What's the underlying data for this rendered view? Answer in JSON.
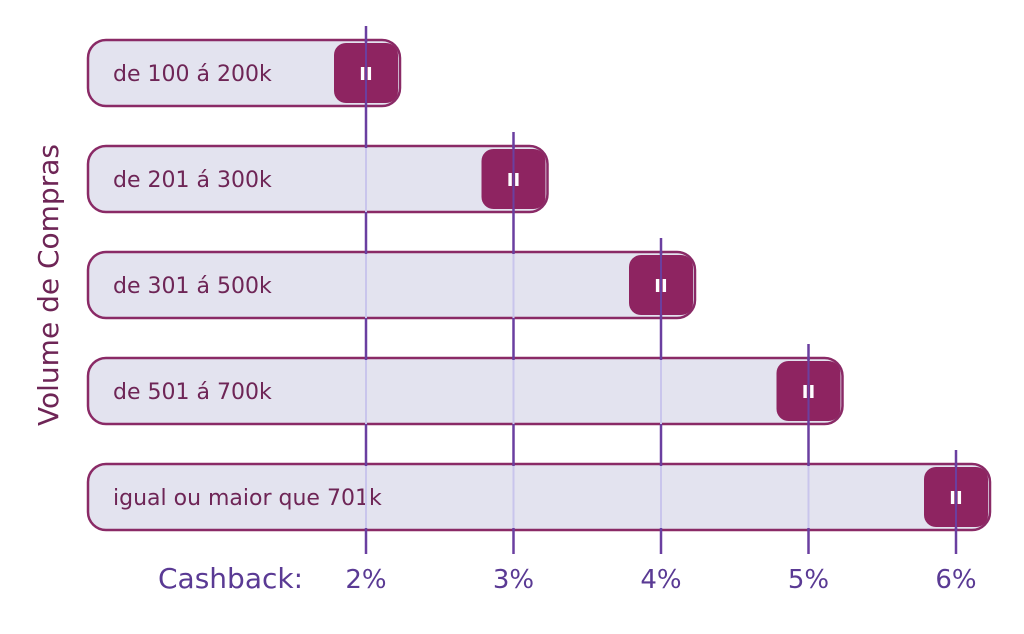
{
  "chart_data": {
    "type": "bar",
    "orientation": "horizontal",
    "ylabel": "Volume de Compras",
    "xlabel": "Cashback:",
    "categories": [
      "de 100 á 200k",
      "de 201 á 300k",
      "de 301 á 500k",
      "de 501 á 700k",
      "igual ou maior que 701k"
    ],
    "values": [
      2,
      3,
      4,
      5,
      6
    ],
    "x_ticks": [
      "2%",
      "3%",
      "4%",
      "5%",
      "6%"
    ],
    "x_tick_values": [
      2,
      3,
      4,
      5,
      6
    ],
    "handle_glyph": "II",
    "colors": {
      "bar_fill": "#e3e3ef",
      "bar_stroke": "#8a2a66",
      "handle_fill": "#8e2461",
      "handle_text": "#ffffff",
      "gridline": "#6a3fa0",
      "axis_text": "#5a3a94",
      "label_text": "#6e2556"
    }
  }
}
